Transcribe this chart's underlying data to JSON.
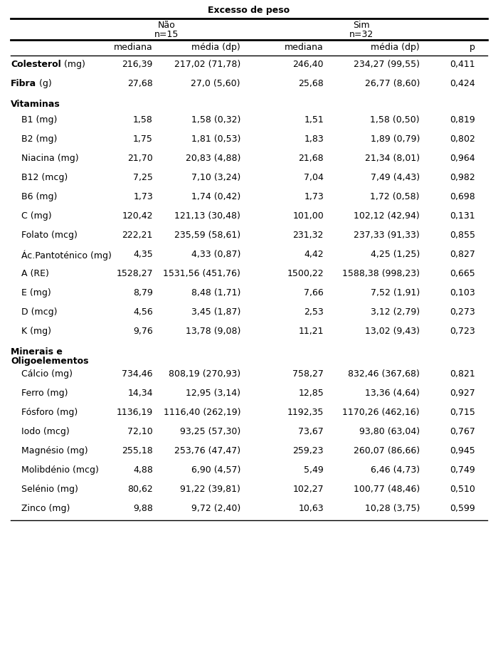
{
  "title": "Excesso de peso",
  "bg_color": "#ffffff",
  "text_color": "#000000",
  "rows": [
    {
      "type": "data",
      "bold": "Colesterol",
      "normal": " (mg)",
      "vals": [
        "216,39",
        "217,02 (71,78)",
        "246,40",
        "234,27 (99,55)",
        "0,411"
      ]
    },
    {
      "type": "data",
      "bold": "Fibra",
      "normal": " (g)",
      "vals": [
        "27,68",
        "27,0 (5,60)",
        "25,68",
        "26,77 (8,60)",
        "0,424"
      ]
    },
    {
      "type": "section",
      "text": "Vitaminas",
      "vals": []
    },
    {
      "type": "subdata",
      "bold": "",
      "normal": "B1 (mg)",
      "vals": [
        "1,58",
        "1,58 (0,32)",
        "1,51",
        "1,58 (0,50)",
        "0,819"
      ]
    },
    {
      "type": "subdata",
      "bold": "",
      "normal": "B2 (mg)",
      "vals": [
        "1,75",
        "1,81 (0,53)",
        "1,83",
        "1,89 (0,79)",
        "0,802"
      ]
    },
    {
      "type": "subdata",
      "bold": "",
      "normal": "Niacina (mg)",
      "vals": [
        "21,70",
        "20,83 (4,88)",
        "21,68",
        "21,34 (8,01)",
        "0,964"
      ]
    },
    {
      "type": "subdata",
      "bold": "",
      "normal": "B12 (mcg)",
      "vals": [
        "7,25",
        "7,10 (3,24)",
        "7,04",
        "7,49 (4,43)",
        "0,982"
      ]
    },
    {
      "type": "subdata",
      "bold": "",
      "normal": "B6 (mg)",
      "vals": [
        "1,73",
        "1,74 (0,42)",
        "1,73",
        "1,72 (0,58)",
        "0,698"
      ]
    },
    {
      "type": "subdata",
      "bold": "",
      "normal": "C (mg)",
      "vals": [
        "120,42",
        "121,13 (30,48)",
        "101,00",
        "102,12 (42,94)",
        "0,131"
      ]
    },
    {
      "type": "subdata",
      "bold": "",
      "normal": "Folato (mcg)",
      "vals": [
        "222,21",
        "235,59 (58,61)",
        "231,32",
        "237,33 (91,33)",
        "0,855"
      ]
    },
    {
      "type": "subdata",
      "bold": "",
      "normal": "Ác.Pantoténico (mg)",
      "vals": [
        "4,35",
        "4,33 (0,87)",
        "4,42",
        "4,25 (1,25)",
        "0,827"
      ]
    },
    {
      "type": "subdata",
      "bold": "",
      "normal": "A (RE)",
      "vals": [
        "1528,27",
        "1531,56 (451,76)",
        "1500,22",
        "1588,38 (998,23)",
        "0,665"
      ]
    },
    {
      "type": "subdata",
      "bold": "",
      "normal": "E (mg)",
      "vals": [
        "8,79",
        "8,48 (1,71)",
        "7,66",
        "7,52 (1,91)",
        "0,103"
      ]
    },
    {
      "type": "subdata",
      "bold": "",
      "normal": "D (mcg)",
      "vals": [
        "4,56",
        "3,45 (1,87)",
        "2,53",
        "3,12 (2,79)",
        "0,273"
      ]
    },
    {
      "type": "subdata",
      "bold": "",
      "normal": "K (mg)",
      "vals": [
        "9,76",
        "13,78 (9,08)",
        "11,21",
        "13,02 (9,43)",
        "0,723"
      ]
    },
    {
      "type": "section2",
      "text": "Minerais e\nOligoelementos",
      "vals": []
    },
    {
      "type": "subdata",
      "bold": "",
      "normal": "Cálcio (mg)",
      "vals": [
        "734,46",
        "808,19 (270,93)",
        "758,27",
        "832,46 (367,68)",
        "0,821"
      ]
    },
    {
      "type": "subdata",
      "bold": "",
      "normal": "Ferro (mg)",
      "vals": [
        "14,34",
        "12,95 (3,14)",
        "12,85",
        "13,36 (4,64)",
        "0,927"
      ]
    },
    {
      "type": "subdata",
      "bold": "",
      "normal": "Fósforo (mg)",
      "vals": [
        "1136,19",
        "1116,40 (262,19)",
        "1192,35",
        "1170,26 (462,16)",
        "0,715"
      ]
    },
    {
      "type": "subdata",
      "bold": "",
      "normal": "Iodo (mcg)",
      "vals": [
        "72,10",
        "93,25 (57,30)",
        "73,67",
        "93,80 (63,04)",
        "0,767"
      ]
    },
    {
      "type": "subdata",
      "bold": "",
      "normal": "Magnésio (mg)",
      "vals": [
        "255,18",
        "253,76 (47,47)",
        "259,23",
        "260,07 (86,66)",
        "0,945"
      ]
    },
    {
      "type": "subdata",
      "bold": "",
      "normal": "Molibdénio (mcg)",
      "vals": [
        "4,88",
        "6,90 (4,57)",
        "5,49",
        "6,46 (4,73)",
        "0,749"
      ]
    },
    {
      "type": "subdata",
      "bold": "",
      "normal": "Selénio (mg)",
      "vals": [
        "80,62",
        "91,22 (39,81)",
        "102,27",
        "100,77 (48,46)",
        "0,510"
      ]
    },
    {
      "type": "subdata",
      "bold": "",
      "normal": "Zinco (mg)",
      "vals": [
        "9,88",
        "9,72 (2,40)",
        "10,63",
        "10,28 (3,75)",
        "0,599"
      ]
    }
  ]
}
